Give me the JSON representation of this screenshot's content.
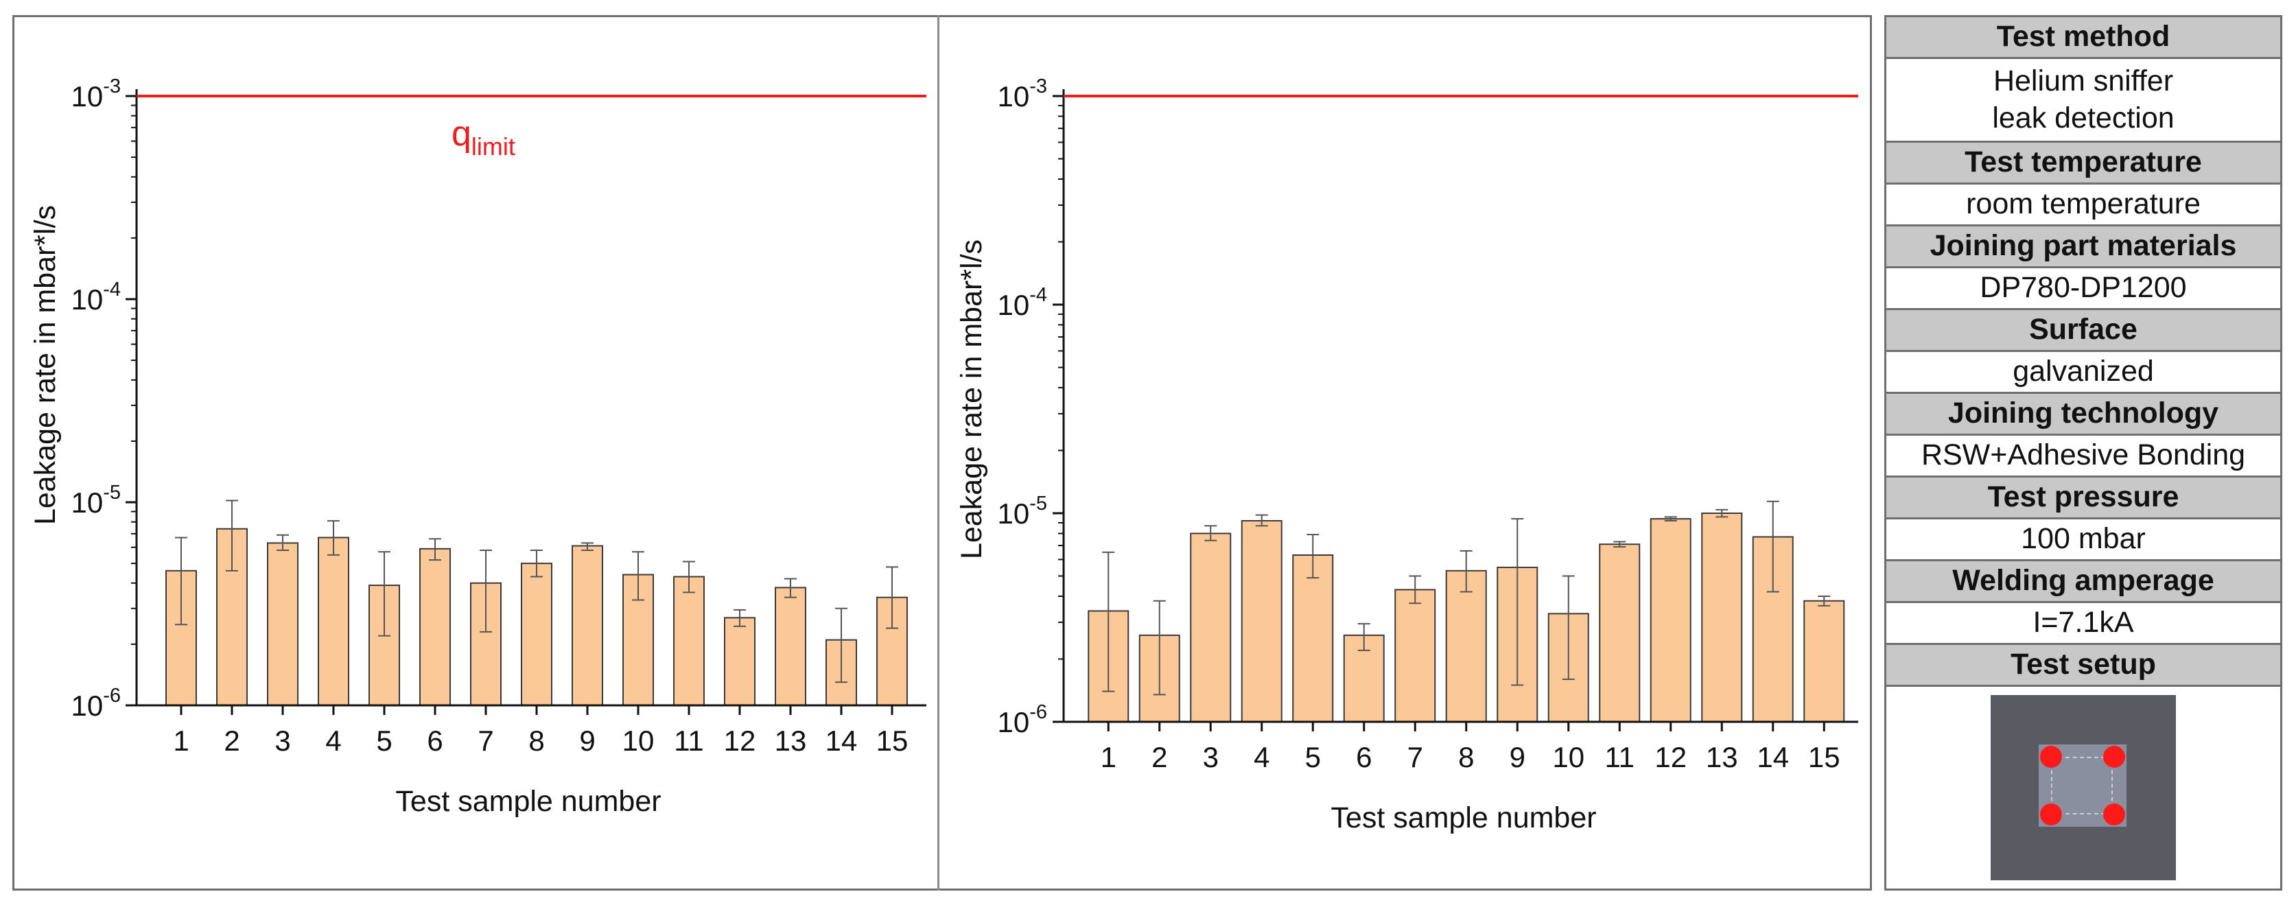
{
  "colors": {
    "bar_fill": "#fbc997",
    "bar_stroke": "#3a3a3a",
    "limit_line": "#ee1c1c",
    "header_bg": "#c8c8c8",
    "setup_bg": "#595a62",
    "spot": "#ff1a1a"
  },
  "chart_data": [
    {
      "type": "bar",
      "title": "",
      "xlabel": "Test sample number",
      "ylabel": "Leakage rate in mbar*l/s",
      "yscale": "log",
      "ylim": [
        1e-06,
        0.001
      ],
      "ytick_labels": [
        {
          "base": "10",
          "exp": "-6"
        },
        {
          "base": "10",
          "exp": "-5"
        },
        {
          "base": "10",
          "exp": "-4"
        },
        {
          "base": "10",
          "exp": "-3"
        }
      ],
      "categories": [
        "1",
        "2",
        "3",
        "4",
        "5",
        "6",
        "7",
        "8",
        "9",
        "10",
        "11",
        "12",
        "13",
        "14",
        "15"
      ],
      "values": [
        4.6e-06,
        7.4e-06,
        6.3e-06,
        6.7e-06,
        3.9e-06,
        5.9e-06,
        4e-06,
        5e-06,
        6.1e-06,
        4.4e-06,
        4.3e-06,
        2.7e-06,
        3.8e-06,
        2.1e-06,
        3.4e-06
      ],
      "err_low": [
        2.5e-06,
        4.6e-06,
        5.8e-06,
        5.5e-06,
        2.2e-06,
        5.2e-06,
        2.3e-06,
        4.3e-06,
        5.8e-06,
        3.3e-06,
        3.6e-06,
        2.45e-06,
        3.4e-06,
        1.3e-06,
        2.4e-06
      ],
      "err_high": [
        6.7e-06,
        1.02e-05,
        6.9e-06,
        8.1e-06,
        5.7e-06,
        6.6e-06,
        5.8e-06,
        5.8e-06,
        6.3e-06,
        5.7e-06,
        5.1e-06,
        2.95e-06,
        4.2e-06,
        3e-06,
        4.8e-06
      ],
      "limit": {
        "value": 0.001,
        "label_base": "q",
        "label_sub": "limit"
      }
    },
    {
      "type": "bar",
      "title": "",
      "xlabel": "Test sample number",
      "ylabel": "Leakage rate in mbar*l/s",
      "yscale": "log",
      "ylim": [
        1e-06,
        0.001
      ],
      "ytick_labels": [
        {
          "base": "10",
          "exp": "-6"
        },
        {
          "base": "10",
          "exp": "-5"
        },
        {
          "base": "10",
          "exp": "-4"
        },
        {
          "base": "10",
          "exp": "-3"
        }
      ],
      "categories": [
        "1",
        "2",
        "3",
        "4",
        "5",
        "6",
        "7",
        "8",
        "9",
        "10",
        "11",
        "12",
        "13",
        "14",
        "15"
      ],
      "values": [
        3.4e-06,
        2.6e-06,
        8e-06,
        9.2e-06,
        6.3e-06,
        2.6e-06,
        4.3e-06,
        5.3e-06,
        5.5e-06,
        3.3e-06,
        7.1e-06,
        9.4e-06,
        1e-05,
        7.7e-06,
        3.8e-06
      ],
      "err_low": [
        1.4e-06,
        1.35e-06,
        7.4e-06,
        8.7e-06,
        4.9e-06,
        2.2e-06,
        3.7e-06,
        4.2e-06,
        1.5e-06,
        1.6e-06,
        6.9e-06,
        9.2e-06,
        9.6e-06,
        4.2e-06,
        3.6e-06
      ],
      "err_high": [
        6.5e-06,
        3.8e-06,
        8.7e-06,
        9.8e-06,
        7.9e-06,
        2.95e-06,
        5e-06,
        6.6e-06,
        9.4e-06,
        5e-06,
        7.3e-06,
        9.6e-06,
        1.04e-05,
        1.14e-05,
        4e-06
      ],
      "limit": {
        "value": 0.001
      }
    }
  ],
  "info_table": {
    "test_method_header": "Test method",
    "test_method_line1": "Helium sniffer",
    "test_method_line2": "leak detection",
    "test_temperature_header": "Test temperature",
    "test_temperature_value": "room temperature",
    "materials_header": "Joining part materials",
    "materials_value": "DP780-DP1200",
    "surface_header": "Surface",
    "surface_value": "galvanized",
    "technology_header": "Joining technology",
    "technology_value": "RSW+Adhesive Bonding",
    "pressure_header": "Test pressure",
    "pressure_value": "100 mbar",
    "amperage_header": "Welding amperage",
    "amperage_value": "I=7.1kA",
    "setup_header": "Test setup"
  }
}
